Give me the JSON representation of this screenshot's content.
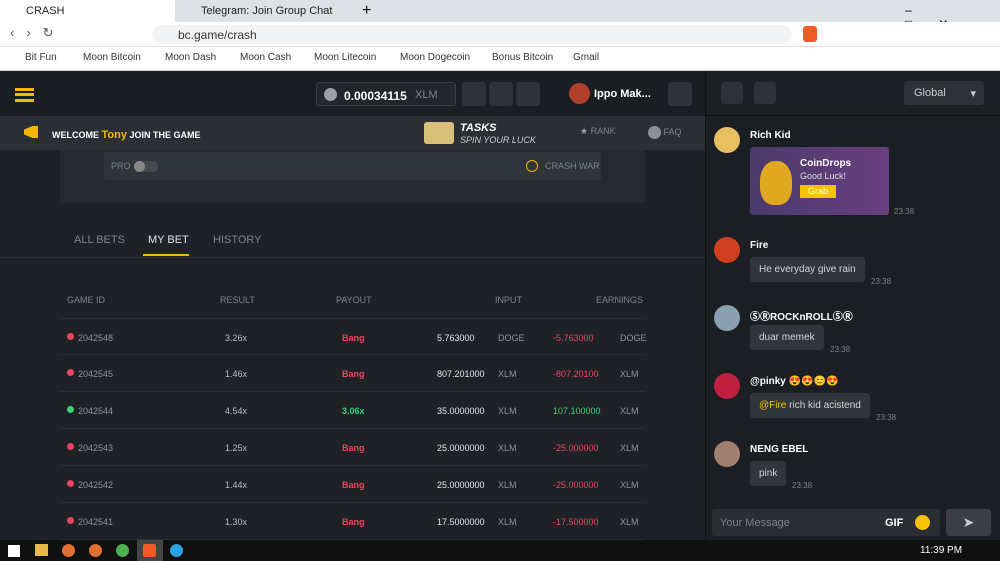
{
  "browser": {
    "tabs": [
      "CRASH",
      "Telegram: Join Group Chat"
    ],
    "url": "bc.game/crash",
    "bookmarks": [
      "Bit Fun",
      "Moon Bitcoin",
      "Moon Dash",
      "Moon Cash",
      "Moon Litecoin",
      "Moon Dogecoin",
      "Bonus Bitcoin",
      "Gmail"
    ]
  },
  "header": {
    "balance": "0.00034115",
    "currency": "XLM",
    "user": "Ippo Mak..."
  },
  "welcome": {
    "prefix": "WELCOME",
    "name": "Tony",
    "suffix": "JOIN THE GAME",
    "tasks_title": "TASKS",
    "tasks_subtitle": "SPIN YOUR LUCK",
    "rank": "RANK",
    "faq": "FAQ"
  },
  "panel": {
    "pro": "PRO",
    "crash_war": "CRASH WAR"
  },
  "tabs": [
    "ALL BETS",
    "MY BET",
    "HISTORY"
  ],
  "table": {
    "columns": [
      "GAME ID",
      "RESULT",
      "PAYOUT",
      "INPUT",
      "EARNINGS"
    ],
    "rows": [
      [
        "2042548",
        "3.26x",
        "Bang",
        "5.763000",
        "DOGE",
        "-5.763000",
        "DOGE"
      ],
      [
        "2042545",
        "1.46x",
        "Bang",
        "807.201000",
        "XLM",
        "-807.20100",
        "XLM"
      ],
      [
        "2042544",
        "4.54x",
        "3.06x",
        "35.0000000",
        "XLM",
        "107.100000",
        "XLM"
      ],
      [
        "2042543",
        "1.25x",
        "Bang",
        "25.0000000",
        "XLM",
        "-25.000000",
        "XLM"
      ],
      [
        "2042542",
        "1.44x",
        "Bang",
        "25.0000000",
        "XLM",
        "-25.000000",
        "XLM"
      ],
      [
        "2042541",
        "1.30x",
        "Bang",
        "17.5000000",
        "XLM",
        "-17.500000",
        "XLM"
      ]
    ]
  },
  "chat": {
    "channel": "Global",
    "messages": [
      {
        "user": "Rich Kid",
        "card_title": "CoinDrops",
        "card_text": "Good Luck!",
        "card_button": "Grab",
        "time": "23:38"
      },
      {
        "user": "Fire",
        "text": "He everyday give rain",
        "time": "23:38"
      },
      {
        "user": "ⓈⓇROCKnROLLⓈⓇ",
        "text": "duar memek",
        "time": "23:38"
      },
      {
        "user": "@pinky 😍😍😊😍",
        "mention": "@Fire",
        "text": "rich kid acistend",
        "time": "23:38"
      },
      {
        "user": "NENG EBEL",
        "text": "pink",
        "time": "23:38"
      }
    ],
    "placeholder": "Your Message",
    "gif": "GIF"
  },
  "taskbar": {
    "time": "11:39 PM"
  }
}
